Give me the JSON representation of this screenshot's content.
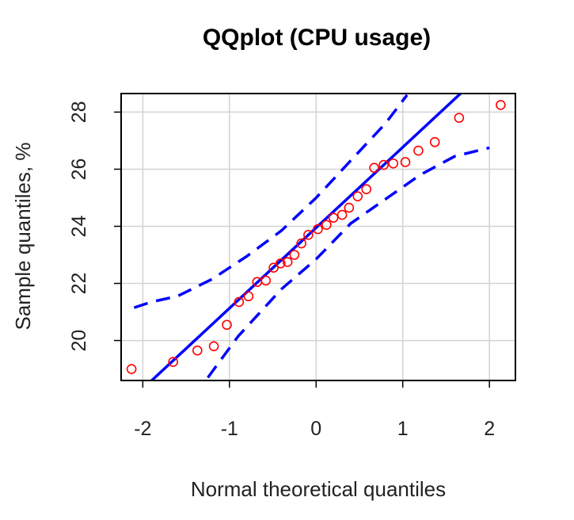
{
  "chart_data": {
    "type": "scatter",
    "title": "QQplot (CPU usage)",
    "xlabel": "Normal theoretical quantiles",
    "ylabel": "Sample quantiles, %",
    "xlim": [
      -2.25,
      2.3
    ],
    "ylim": [
      18.6,
      28.65
    ],
    "xticks": [
      -2,
      -1,
      0,
      1,
      2
    ],
    "xtick_labels": [
      "-2",
      "-1",
      "0",
      "1",
      "2"
    ],
    "yticks": [
      20,
      22,
      24,
      26,
      28
    ],
    "ytick_labels": [
      "20",
      "22",
      "24",
      "26",
      "28"
    ],
    "grid": true,
    "legend": false,
    "colors": {
      "points": "#ff0000",
      "reference_line": "#0000ff",
      "confidence_band": "#0000ff",
      "grid": "#d3d3d3",
      "frame": "#000000"
    },
    "points": [
      {
        "x": -2.13,
        "y": 19.0
      },
      {
        "x": -1.65,
        "y": 19.25
      },
      {
        "x": -1.37,
        "y": 19.65
      },
      {
        "x": -1.18,
        "y": 19.8
      },
      {
        "x": -1.03,
        "y": 20.55
      },
      {
        "x": -0.89,
        "y": 21.35
      },
      {
        "x": -0.78,
        "y": 21.55
      },
      {
        "x": -0.68,
        "y": 22.05
      },
      {
        "x": -0.58,
        "y": 22.1
      },
      {
        "x": -0.49,
        "y": 22.55
      },
      {
        "x": -0.41,
        "y": 22.7
      },
      {
        "x": -0.33,
        "y": 22.75
      },
      {
        "x": -0.25,
        "y": 23.0
      },
      {
        "x": -0.17,
        "y": 23.4
      },
      {
        "x": -0.09,
        "y": 23.7
      },
      {
        "x": 0.02,
        "y": 23.9
      },
      {
        "x": 0.12,
        "y": 24.05
      },
      {
        "x": 0.2,
        "y": 24.3
      },
      {
        "x": 0.3,
        "y": 24.4
      },
      {
        "x": 0.38,
        "y": 24.65
      },
      {
        "x": 0.48,
        "y": 25.05
      },
      {
        "x": 0.58,
        "y": 25.3
      },
      {
        "x": 0.67,
        "y": 26.05
      },
      {
        "x": 0.78,
        "y": 26.15
      },
      {
        "x": 0.89,
        "y": 26.2
      },
      {
        "x": 1.03,
        "y": 26.25
      },
      {
        "x": 1.18,
        "y": 26.65
      },
      {
        "x": 1.37,
        "y": 26.95
      },
      {
        "x": 1.65,
        "y": 27.8
      },
      {
        "x": 2.13,
        "y": 28.25
      }
    ],
    "reference_line": {
      "intercept": 23.95,
      "slope": 2.82
    },
    "confidence_band_upper": [
      {
        "x": -2.1,
        "y": 21.15
      },
      {
        "x": -1.9,
        "y": 21.35
      },
      {
        "x": -1.6,
        "y": 21.55
      },
      {
        "x": -1.2,
        "y": 22.15
      },
      {
        "x": -0.8,
        "y": 22.95
      },
      {
        "x": -0.4,
        "y": 23.85
      },
      {
        "x": 0.0,
        "y": 25.0
      },
      {
        "x": 0.4,
        "y": 26.3
      },
      {
        "x": 0.8,
        "y": 27.6
      },
      {
        "x": 1.05,
        "y": 28.6
      }
    ],
    "confidence_band_lower": [
      {
        "x": -1.25,
        "y": 18.7
      },
      {
        "x": -0.9,
        "y": 20.15
      },
      {
        "x": -0.4,
        "y": 21.8
      },
      {
        "x": 0.0,
        "y": 22.85
      },
      {
        "x": 0.4,
        "y": 24.1
      },
      {
        "x": 0.8,
        "y": 24.95
      },
      {
        "x": 1.2,
        "y": 25.8
      },
      {
        "x": 1.6,
        "y": 26.45
      },
      {
        "x": 2.0,
        "y": 26.75
      }
    ]
  }
}
